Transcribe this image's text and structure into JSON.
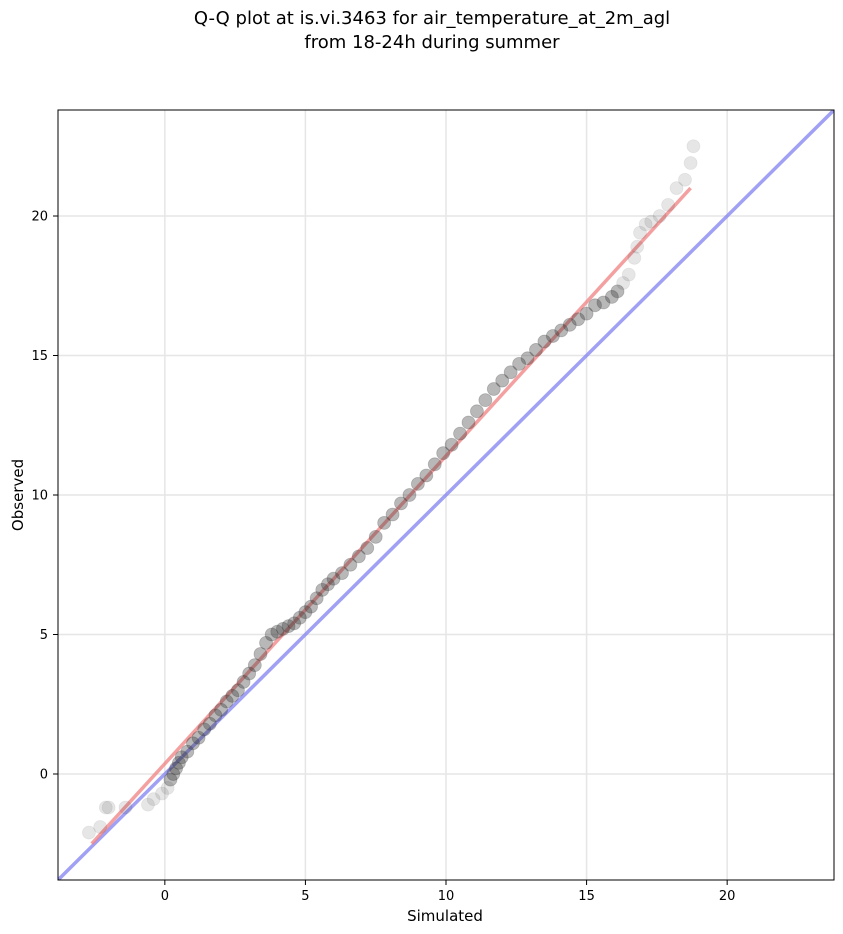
{
  "chart_data": {
    "type": "scatter",
    "title_lines": [
      "Q-Q plot at is.vi.3463 for air_temperature_at_2m_agl",
      "from 18-24h during summer"
    ],
    "xlabel": "Simulated",
    "ylabel": "Observed",
    "xlim": [
      -3.8,
      23.8
    ],
    "ylim": [
      -3.8,
      23.8
    ],
    "x_ticks": [
      0,
      5,
      10,
      15,
      20
    ],
    "y_ticks": [
      0,
      5,
      10,
      15,
      20
    ],
    "x_tick_labels": [
      "0",
      "5",
      "10",
      "15",
      "20"
    ],
    "y_tick_labels": [
      "0",
      "5",
      "10",
      "15",
      "20"
    ],
    "grid": true,
    "colors": {
      "points": "#333333",
      "fit_line": "#f08080",
      "identity_line": "#8080f0",
      "grid": "#e6e6e6"
    },
    "series": [
      {
        "role": "quantile-points",
        "x": [
          -2.7,
          -2.3,
          -2.1,
          -2.0,
          -1.4,
          -0.6,
          -0.4,
          -0.1,
          0.1,
          0.2,
          0.3,
          0.4,
          0.5,
          0.6,
          0.8,
          1.0,
          1.2,
          1.4,
          1.6,
          1.8,
          2.0,
          2.2,
          2.4,
          2.6,
          2.8,
          3.0,
          3.2,
          3.4,
          3.6,
          3.8,
          4.0,
          4.2,
          4.4,
          4.6,
          4.8,
          5.0,
          5.2,
          5.4,
          5.6,
          5.8,
          6.0,
          6.3,
          6.6,
          6.9,
          7.2,
          7.5,
          7.8,
          8.1,
          8.4,
          8.7,
          9.0,
          9.3,
          9.6,
          9.9,
          10.2,
          10.5,
          10.8,
          11.1,
          11.4,
          11.7,
          12.0,
          12.3,
          12.6,
          12.9,
          13.2,
          13.5,
          13.8,
          14.1,
          14.4,
          14.7,
          15.0,
          15.3,
          15.6,
          15.9,
          16.1,
          16.3,
          16.5,
          16.7,
          16.8,
          16.9,
          17.1,
          17.3,
          17.6,
          17.9,
          18.2,
          18.5,
          18.7,
          18.8
        ],
        "y": [
          -2.1,
          -1.9,
          -1.2,
          -1.2,
          -1.2,
          -1.1,
          -0.9,
          -0.7,
          -0.5,
          -0.2,
          0.0,
          0.2,
          0.4,
          0.6,
          0.8,
          1.1,
          1.3,
          1.6,
          1.8,
          2.1,
          2.3,
          2.6,
          2.8,
          3.0,
          3.3,
          3.6,
          3.9,
          4.3,
          4.7,
          5.0,
          5.1,
          5.2,
          5.3,
          5.4,
          5.6,
          5.8,
          6.0,
          6.3,
          6.6,
          6.8,
          7.0,
          7.2,
          7.5,
          7.8,
          8.1,
          8.5,
          9.0,
          9.3,
          9.7,
          10.0,
          10.4,
          10.7,
          11.1,
          11.5,
          11.8,
          12.2,
          12.6,
          13.0,
          13.4,
          13.8,
          14.1,
          14.4,
          14.7,
          14.9,
          15.2,
          15.5,
          15.7,
          15.9,
          16.1,
          16.3,
          16.5,
          16.8,
          16.9,
          17.1,
          17.3,
          17.6,
          17.9,
          18.5,
          18.9,
          19.4,
          19.7,
          19.8,
          20.0,
          20.4,
          21.0,
          21.3,
          21.9,
          22.5
        ]
      },
      {
        "role": "fit-line",
        "x": [
          -2.6,
          18.7
        ],
        "y": [
          -2.5,
          21.0
        ]
      },
      {
        "role": "identity-line",
        "x": [
          -3.8,
          23.8
        ],
        "y": [
          -3.8,
          23.8
        ]
      }
    ]
  }
}
